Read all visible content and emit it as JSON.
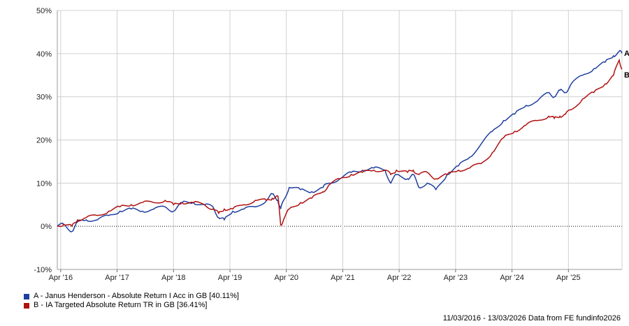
{
  "chart_data": {
    "type": "line",
    "x_tick_labels": [
      "Apr '16",
      "Apr '17",
      "Apr '18",
      "Apr '19",
      "Apr '20",
      "Apr '21",
      "Apr '22",
      "Apr '23",
      "Apr '24",
      "Apr '25"
    ],
    "y_tick_labels": [
      "50%",
      "40%",
      "30%",
      "20%",
      "10%",
      "0%",
      "-10%"
    ],
    "ylim": [
      -10,
      50
    ],
    "xlim": [
      2016.19,
      2026.2
    ],
    "grid": true,
    "zero_line": "dotted",
    "series": [
      {
        "name": "A - Janus Henderson - Absolute Return I Acc in GB [40.11%]",
        "end_label": "A",
        "color": "#1f3f9f",
        "x": [
          2016.19,
          2016.3,
          2016.45,
          2016.55,
          2016.7,
          2016.9,
          2017.1,
          2017.3,
          2017.5,
          2017.7,
          2017.9,
          2018.1,
          2018.25,
          2018.4,
          2018.6,
          2018.8,
          2018.95,
          2019.05,
          2019.15,
          2019.3,
          2019.5,
          2019.7,
          2019.9,
          2020.0,
          2020.1,
          2020.15,
          2020.2,
          2020.3,
          2020.5,
          2020.7,
          2020.9,
          2021.0,
          2021.2,
          2021.4,
          2021.6,
          2021.8,
          2022.0,
          2022.1,
          2022.2,
          2022.4,
          2022.5,
          2022.6,
          2022.75,
          2022.9,
          2023.1,
          2023.3,
          2023.5,
          2023.7,
          2023.9,
          2024.1,
          2024.3,
          2024.5,
          2024.7,
          2024.9,
          2025.0,
          2025.1,
          2025.2,
          2025.3,
          2025.5,
          2025.7,
          2025.9,
          2026.05,
          2026.15,
          2026.2
        ],
        "values": [
          0,
          0.5,
          -1.2,
          1,
          1.5,
          1.5,
          2.5,
          3.5,
          4,
          3.5,
          4,
          4.5,
          3.5,
          5.5,
          5.5,
          5,
          4.5,
          2,
          1.5,
          3.5,
          4,
          4.5,
          6,
          7.5,
          6,
          4,
          6,
          9,
          8.5,
          8,
          9,
          10,
          11,
          12.5,
          13,
          13.5,
          13,
          10,
          12,
          11,
          12,
          9,
          10,
          8.5,
          12,
          14,
          16,
          19,
          22,
          24.5,
          26,
          28,
          29,
          31,
          30,
          31.5,
          31,
          33,
          35,
          36.5,
          38,
          39.5,
          40.5,
          40.11
        ]
      },
      {
        "name": "B - IA Targeted Absolute Return TR in GB [36.41%]",
        "end_label": "B",
        "color": "#b01010",
        "x": [
          2016.19,
          2016.3,
          2016.45,
          2016.55,
          2016.7,
          2016.9,
          2017.1,
          2017.3,
          2017.5,
          2017.7,
          2017.9,
          2018.1,
          2018.25,
          2018.4,
          2018.6,
          2018.8,
          2018.95,
          2019.05,
          2019.15,
          2019.3,
          2019.5,
          2019.7,
          2019.9,
          2020.0,
          2020.1,
          2020.15,
          2020.2,
          2020.3,
          2020.5,
          2020.7,
          2020.9,
          2021.0,
          2021.2,
          2021.4,
          2021.6,
          2021.8,
          2022.0,
          2022.1,
          2022.2,
          2022.4,
          2022.5,
          2022.6,
          2022.75,
          2022.9,
          2023.1,
          2023.3,
          2023.5,
          2023.7,
          2023.9,
          2024.1,
          2024.3,
          2024.5,
          2024.7,
          2024.9,
          2025.0,
          2025.1,
          2025.2,
          2025.3,
          2025.5,
          2025.7,
          2025.9,
          2026.05,
          2026.15,
          2026.2
        ],
        "values": [
          0,
          0.5,
          0,
          1.5,
          2,
          2.5,
          3.5,
          4.5,
          5,
          5.5,
          5.5,
          6,
          5,
          5.5,
          5.5,
          5,
          4,
          3,
          4,
          4,
          5,
          6,
          6,
          6.5,
          7,
          0.3,
          1.5,
          4,
          5.5,
          6.5,
          8,
          9.5,
          11,
          12,
          12.5,
          13,
          13,
          12,
          13,
          12.5,
          13,
          12,
          12.5,
          11,
          12,
          13,
          13.5,
          14.5,
          17,
          20.5,
          22,
          23.5,
          24.5,
          25.5,
          25,
          25.5,
          26,
          27,
          29.5,
          31,
          33,
          35,
          38.5,
          36.41
        ]
      }
    ]
  },
  "footer": "11/03/2016 - 13/03/2026 Data from FE fundinfo2026"
}
